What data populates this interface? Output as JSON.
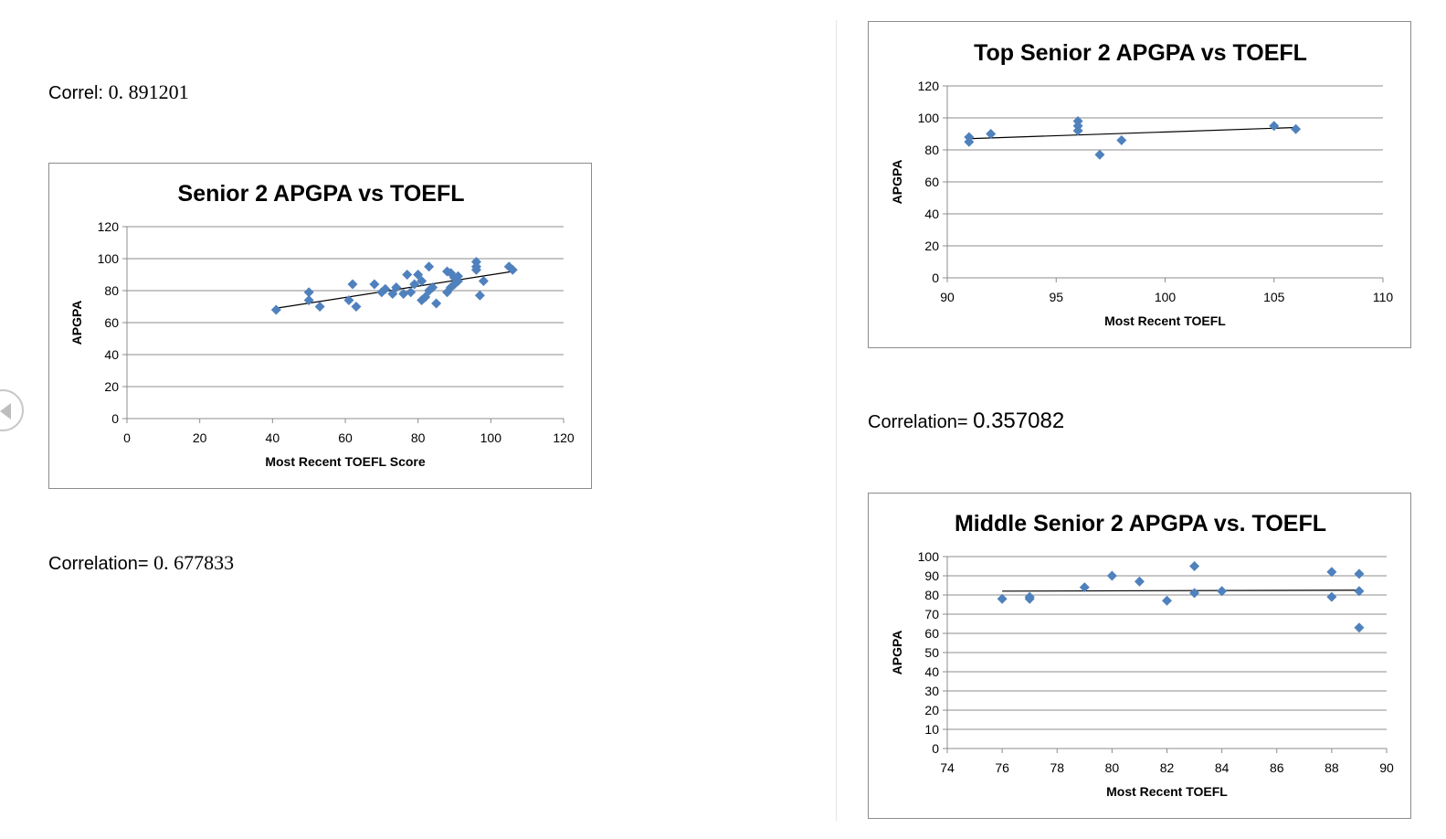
{
  "notes": {
    "correl1": {
      "label": "Correl: ",
      "value": "0. 891201"
    },
    "correl2": {
      "label": "Correlation= ",
      "value": "0. 677833"
    },
    "correl3": {
      "label": "Correlation= ",
      "value": "0.357082"
    }
  },
  "colors": {
    "marker": "#4f81bd",
    "grid": "#8c8c8c",
    "trend": "#000000"
  },
  "chart_data": [
    {
      "type": "scatter",
      "title": "Senior 2 APGPA vs TOEFL",
      "xlabel": "Most Recent TOEFL Score",
      "ylabel": "APGPA",
      "xlim": [
        0,
        120
      ],
      "xticks": [
        0,
        20,
        40,
        60,
        80,
        100,
        120
      ],
      "ylim": [
        0,
        120
      ],
      "yticks": [
        0,
        20,
        40,
        60,
        80,
        100,
        120
      ],
      "grid": true,
      "legend": "none",
      "trendline": "linear",
      "trend": [
        [
          41,
          69
        ],
        [
          106,
          92
        ]
      ],
      "points": [
        [
          41,
          68
        ],
        [
          50,
          79
        ],
        [
          50,
          74
        ],
        [
          53,
          70
        ],
        [
          61,
          74
        ],
        [
          62,
          84
        ],
        [
          63,
          70
        ],
        [
          68,
          84
        ],
        [
          70,
          79
        ],
        [
          71,
          81
        ],
        [
          73,
          78
        ],
        [
          74,
          82
        ],
        [
          76,
          78
        ],
        [
          77,
          90
        ],
        [
          78,
          79
        ],
        [
          79,
          84
        ],
        [
          80,
          90
        ],
        [
          81,
          86
        ],
        [
          81,
          74
        ],
        [
          82,
          76
        ],
        [
          83,
          80
        ],
        [
          83,
          95
        ],
        [
          84,
          82
        ],
        [
          85,
          72
        ],
        [
          88,
          92
        ],
        [
          88,
          79
        ],
        [
          89,
          82
        ],
        [
          89,
          91
        ],
        [
          90,
          88
        ],
        [
          90,
          84
        ],
        [
          91,
          86
        ],
        [
          91,
          89
        ],
        [
          96,
          98
        ],
        [
          96,
          93
        ],
        [
          96,
          95
        ],
        [
          97,
          77
        ],
        [
          98,
          86
        ],
        [
          105,
          95
        ],
        [
          106,
          93
        ]
      ]
    },
    {
      "type": "scatter",
      "title": "Top Senior 2 APGPA vs TOEFL",
      "xlabel": "Most Recent TOEFL",
      "ylabel": "APGPA",
      "xlim": [
        90,
        110
      ],
      "xticks": [
        90,
        95,
        100,
        105,
        110
      ],
      "ylim": [
        0,
        120
      ],
      "yticks": [
        0,
        20,
        40,
        60,
        80,
        100,
        120
      ],
      "grid": true,
      "legend": "none",
      "trendline": "linear",
      "trend": [
        [
          91,
          87
        ],
        [
          106,
          94
        ]
      ],
      "points": [
        [
          91,
          85
        ],
        [
          91,
          88
        ],
        [
          92,
          90
        ],
        [
          96,
          98
        ],
        [
          96,
          95
        ],
        [
          96,
          92
        ],
        [
          97,
          77
        ],
        [
          98,
          86
        ],
        [
          105,
          95
        ],
        [
          106,
          93
        ]
      ]
    },
    {
      "type": "scatter",
      "title": "Middle Senior 2 APGPA vs. TOEFL",
      "xlabel": "Most Recent TOEFL",
      "ylabel": "APGPA",
      "xlim": [
        74,
        90
      ],
      "xticks": [
        74,
        76,
        78,
        80,
        82,
        84,
        86,
        88,
        90
      ],
      "ylim": [
        0,
        100
      ],
      "yticks": [
        0,
        10,
        20,
        30,
        40,
        50,
        60,
        70,
        80,
        90,
        100
      ],
      "grid": true,
      "legend": "none",
      "trendline": "linear",
      "trend": [
        [
          76,
          82
        ],
        [
          89,
          82.5
        ]
      ],
      "points": [
        [
          76,
          78
        ],
        [
          77,
          78
        ],
        [
          77,
          79
        ],
        [
          79,
          84
        ],
        [
          80,
          90
        ],
        [
          81,
          87
        ],
        [
          82,
          77
        ],
        [
          83,
          95
        ],
        [
          83,
          81
        ],
        [
          84,
          82
        ],
        [
          88,
          92
        ],
        [
          88,
          79
        ],
        [
          89,
          91
        ],
        [
          89,
          82
        ],
        [
          89,
          63
        ]
      ]
    }
  ]
}
